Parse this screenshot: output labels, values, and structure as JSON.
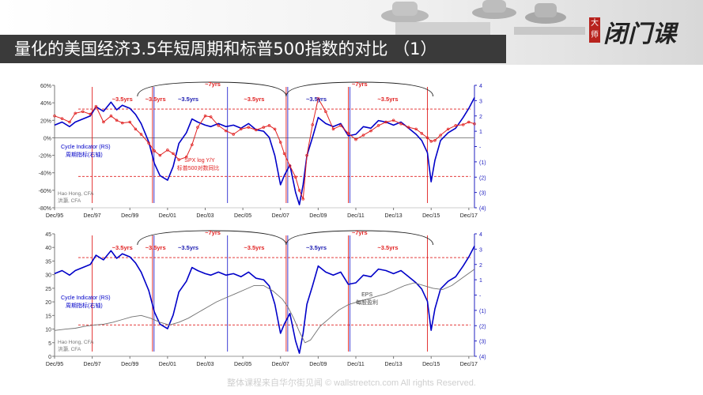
{
  "header": {
    "title": "量化的美国经济3.5年短周期和标普500指数的对比  （1）",
    "logo_seal": "大师",
    "logo_text": "闭门课"
  },
  "footer": {
    "text": "整体课程来自华尔街见闻 © wallstreetcn.com   All rights Reserved."
  },
  "colors": {
    "cycle": "#0000c8",
    "spx": "#e02020",
    "eps": "#707070",
    "axis_right": "#2020c0",
    "red_arc": "#e02020"
  },
  "chart_data": [
    {
      "type": "line",
      "x_ticks": [
        "Dec/95",
        "Dec/97",
        "Dec/99",
        "Dec/01",
        "Dec/03",
        "Dec/05",
        "Dec/07",
        "Dec/09",
        "Dec/11",
        "Dec/13",
        "Dec/15",
        "Dec/17"
      ],
      "left_axis": {
        "ticks": [
          "60%",
          "40%",
          "20%",
          "0%",
          "-20%",
          "-40%",
          "-60%",
          "-80%"
        ],
        "range": [
          -80,
          60
        ]
      },
      "right_axis": {
        "ticks": [
          "4",
          "3",
          "2",
          "1",
          "-",
          "(1)",
          "(2)",
          "(3)",
          "(4)"
        ],
        "range": [
          -4,
          4
        ]
      },
      "series": [
        {
          "name": "Cycle Indicator (RS)",
          "name_cn": "周期指标(右轴)",
          "axis": "right",
          "x": [
            1995.9,
            1996.3,
            1996.7,
            1997.0,
            1997.4,
            1997.8,
            1998.1,
            1998.5,
            1998.9,
            1999.2,
            1999.5,
            1999.9,
            2000.2,
            2000.5,
            2000.9,
            2001.2,
            2001.5,
            2001.9,
            2002.2,
            2002.5,
            2002.9,
            2003.2,
            2003.5,
            2003.9,
            2004.2,
            2004.6,
            2005.0,
            2005.4,
            2005.8,
            2006.2,
            2006.6,
            2007.0,
            2007.3,
            2007.6,
            2007.9,
            2008.1,
            2008.4,
            2008.7,
            2008.9,
            2009.1,
            2009.3,
            2009.6,
            2009.9,
            2010.3,
            2010.7,
            2011.1,
            2011.5,
            2011.9,
            2012.3,
            2012.7,
            2013.1,
            2013.5,
            2013.9,
            2014.3,
            2014.7,
            2015.1,
            2015.4,
            2015.7,
            2015.9,
            2016.1,
            2016.4,
            2016.8,
            2017.2,
            2017.6,
            2017.9,
            2018.2
          ],
          "y": [
            1.4,
            1.6,
            1.3,
            1.6,
            1.8,
            2.0,
            2.6,
            2.3,
            2.9,
            2.4,
            2.7,
            2.5,
            2.1,
            1.5,
            0.3,
            -1.1,
            -1.9,
            -2.2,
            -1.3,
            0.2,
            0.9,
            1.8,
            1.6,
            1.4,
            1.3,
            1.5,
            1.3,
            1.4,
            1.2,
            1.5,
            1.1,
            1.0,
            0.6,
            -0.6,
            -2.5,
            -1.9,
            -1.2,
            -3.0,
            -3.8,
            -2.5,
            -0.6,
            0.6,
            1.9,
            1.5,
            1.3,
            1.5,
            0.7,
            0.8,
            1.3,
            1.2,
            1.7,
            1.6,
            1.4,
            1.6,
            1.2,
            0.8,
            0.4,
            -0.4,
            -2.3,
            -0.9,
            0.4,
            0.9,
            1.2,
            1.9,
            2.5,
            3.2
          ]
        },
        {
          "name": "SPX log Y/Y",
          "name_cn": "标普500对数同比",
          "axis": "left",
          "x": [
            1995.9,
            1996.3,
            1996.7,
            1997.0,
            1997.4,
            1997.8,
            1998.1,
            1998.5,
            1998.9,
            1999.2,
            1999.5,
            1999.9,
            2000.2,
            2000.5,
            2000.9,
            2001.2,
            2001.5,
            2001.9,
            2002.2,
            2002.5,
            2002.9,
            2003.2,
            2003.5,
            2003.9,
            2004.2,
            2004.6,
            2005.0,
            2005.4,
            2005.8,
            2006.2,
            2006.6,
            2007.0,
            2007.3,
            2007.6,
            2007.9,
            2008.1,
            2008.4,
            2008.7,
            2008.9,
            2009.1,
            2009.3,
            2009.6,
            2009.9,
            2010.3,
            2010.7,
            2011.1,
            2011.5,
            2011.9,
            2012.3,
            2012.7,
            2013.1,
            2013.5,
            2013.9,
            2014.3,
            2014.7,
            2015.1,
            2015.4,
            2015.7,
            2015.9,
            2016.1,
            2016.4,
            2016.8,
            2017.2,
            2017.6,
            2017.9,
            2018.2
          ],
          "y": [
            25,
            22,
            18,
            28,
            30,
            27,
            36,
            18,
            25,
            20,
            17,
            18,
            10,
            4,
            -6,
            -15,
            -20,
            -14,
            -18,
            -25,
            -22,
            -8,
            12,
            25,
            24,
            14,
            8,
            4,
            10,
            12,
            9,
            12,
            14,
            10,
            -5,
            -18,
            -32,
            -45,
            -60,
            -70,
            -20,
            15,
            45,
            30,
            10,
            14,
            5,
            -2,
            3,
            8,
            14,
            18,
            20,
            16,
            12,
            10,
            5,
            0,
            -4,
            -3,
            3,
            10,
            14,
            15,
            18,
            16
          ]
        }
      ],
      "annotations": {
        "cycles_red": [
          "~3.5yrs",
          "~3.5yrs",
          "~3.5yrs",
          "~3.5yrs"
        ],
        "cycles_blue": [
          "~3.5yrs",
          "~3.5yrs"
        ],
        "long_cycles": [
          "~7yrs",
          "~7yrs"
        ],
        "author": "Hao Hong, CFA",
        "author_cn": "洪灝, CFA"
      }
    },
    {
      "type": "line",
      "x_ticks": [
        "Dec/95",
        "Dec/97",
        "Dec/99",
        "Dec/01",
        "Dec/03",
        "Dec/05",
        "Dec/07",
        "Dec/09",
        "Dec/11",
        "Dec/13",
        "Dec/15",
        "Dec/17"
      ],
      "left_axis": {
        "ticks": [
          "45",
          "40",
          "35",
          "30",
          "25",
          "20",
          "15",
          "10",
          "5",
          "0"
        ],
        "range": [
          0,
          45
        ]
      },
      "right_axis": {
        "ticks": [
          "4",
          "3",
          "2",
          "1",
          "-",
          "(1)",
          "(2)",
          "(3)",
          "(4)"
        ],
        "range": [
          -4,
          4
        ]
      },
      "series": [
        {
          "name": "Cycle Indicator (RS)",
          "name_cn": "周期指标(右轴)",
          "axis": "right",
          "x": [
            1995.9,
            1996.3,
            1996.7,
            1997.0,
            1997.4,
            1997.8,
            1998.1,
            1998.5,
            1998.9,
            1999.2,
            1999.5,
            1999.9,
            2000.2,
            2000.5,
            2000.9,
            2001.2,
            2001.5,
            2001.9,
            2002.2,
            2002.5,
            2002.9,
            2003.2,
            2003.5,
            2003.9,
            2004.2,
            2004.6,
            2005.0,
            2005.4,
            2005.8,
            2006.2,
            2006.6,
            2007.0,
            2007.3,
            2007.6,
            2007.9,
            2008.1,
            2008.4,
            2008.7,
            2008.9,
            2009.1,
            2009.3,
            2009.6,
            2009.9,
            2010.3,
            2010.7,
            2011.1,
            2011.5,
            2011.9,
            2012.3,
            2012.7,
            2013.1,
            2013.5,
            2013.9,
            2014.3,
            2014.7,
            2015.1,
            2015.4,
            2015.7,
            2015.9,
            2016.1,
            2016.4,
            2016.8,
            2017.2,
            2017.6,
            2017.9,
            2018.2
          ],
          "y": [
            1.4,
            1.6,
            1.3,
            1.6,
            1.8,
            2.0,
            2.6,
            2.3,
            2.9,
            2.4,
            2.7,
            2.5,
            2.1,
            1.5,
            0.3,
            -1.1,
            -1.9,
            -2.2,
            -1.3,
            0.2,
            0.9,
            1.8,
            1.6,
            1.4,
            1.3,
            1.5,
            1.3,
            1.4,
            1.2,
            1.5,
            1.1,
            1.0,
            0.6,
            -0.6,
            -2.5,
            -1.9,
            -1.2,
            -3.0,
            -3.8,
            -2.5,
            -0.6,
            0.6,
            1.9,
            1.5,
            1.3,
            1.5,
            0.7,
            0.8,
            1.3,
            1.2,
            1.7,
            1.6,
            1.4,
            1.6,
            1.2,
            0.8,
            0.4,
            -0.4,
            -2.3,
            -0.9,
            0.4,
            0.9,
            1.2,
            1.9,
            2.5,
            3.2
          ]
        },
        {
          "name": "EPS",
          "name_cn": "每股盈利",
          "axis": "left",
          "x": [
            1995.9,
            1996.5,
            1997.0,
            1997.5,
            1998.0,
            1998.5,
            1999.0,
            1999.5,
            2000.0,
            2000.5,
            2001.0,
            2001.5,
            2002.0,
            2002.5,
            2003.0,
            2003.5,
            2004.0,
            2004.5,
            2005.0,
            2005.5,
            2006.0,
            2006.5,
            2007.0,
            2007.5,
            2008.0,
            2008.3,
            2008.6,
            2008.9,
            2009.2,
            2009.5,
            2010.0,
            2010.5,
            2011.0,
            2011.5,
            2012.0,
            2012.5,
            2013.0,
            2013.5,
            2014.0,
            2014.5,
            2015.0,
            2015.5,
            2016.0,
            2016.5,
            2017.0,
            2017.5,
            2018.0,
            2018.2
          ],
          "y": [
            9.5,
            10,
            10.3,
            11,
            11.5,
            11.8,
            12.5,
            13.5,
            14.5,
            15,
            14,
            12.5,
            11.5,
            12.5,
            14,
            16,
            18,
            20,
            21.5,
            23,
            24.5,
            26,
            26,
            24,
            21,
            18,
            14,
            9,
            5,
            6,
            11,
            14,
            17,
            19,
            20,
            21,
            22,
            23,
            24.5,
            26,
            27,
            26,
            25,
            24.5,
            26,
            28.5,
            31,
            32
          ]
        }
      ],
      "annotations": {
        "cycles_red": [
          "~3.5yrs",
          "~3.5yrs",
          "~3.5yrs",
          "~3.5yrs"
        ],
        "cycles_blue": [
          "~3.5yrs",
          "~3.5yrs"
        ],
        "long_cycles": [
          "~7yrs",
          "~7yrs"
        ],
        "author": "Hao Hong, CFA",
        "author_cn": "洪灝, CFA"
      }
    }
  ]
}
